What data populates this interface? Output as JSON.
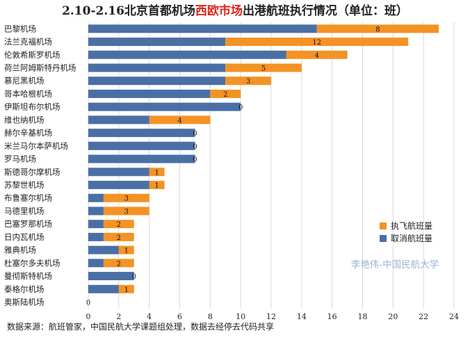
{
  "chart_data": {
    "type": "bar",
    "orientation": "horizontal",
    "stacked": true,
    "title": {
      "prefix": "2.10-2.16北京首都机场",
      "highlight": "西欧市场",
      "suffix": "出港航班执行情况（单位：班）",
      "highlight_color": "#e0241b"
    },
    "categories": [
      "巴黎机场",
      "法兰克福机场",
      "伦敦希斯罗机场",
      "荷兰阿姆斯特丹机场",
      "慕尼黑机场",
      "哥本哈根机场",
      "伊斯坦布尔机场",
      "维也纳机场",
      "赫尔辛基机场",
      "米兰马尔本萨机场",
      "罗马机场",
      "斯德哥尔摩机场",
      "苏黎世机场",
      "布鲁塞尔机场",
      "马德里机场",
      "巴塞罗那机场",
      "日内瓦机场",
      "雅典机场",
      "杜塞尔多夫机场",
      "曼彻斯特机场",
      "泰格尔机场",
      "奥斯陆机场"
    ],
    "series": [
      {
        "name": "取消航班量",
        "color": "#4a6fa5",
        "values": [
          15,
          9,
          13,
          9,
          9,
          8,
          10,
          4,
          7,
          7,
          7,
          4,
          4,
          1,
          1,
          1,
          1,
          2,
          1,
          3,
          2,
          0
        ]
      },
      {
        "name": "执飞航班量",
        "color": "#f39325",
        "values": [
          8,
          12,
          4,
          5,
          3,
          2,
          0,
          4,
          0,
          0,
          0,
          1,
          1,
          3,
          3,
          2,
          2,
          1,
          2,
          0,
          1,
          0
        ]
      }
    ],
    "data_labels_series": "执飞航班量",
    "xlim": [
      0,
      24
    ],
    "x_ticks": [
      0,
      2,
      4,
      6,
      8,
      10,
      12,
      14,
      16,
      18,
      20,
      22,
      24
    ],
    "grid": true,
    "legend_position": "bottom-right",
    "legend_order": [
      "执飞航班量",
      "取消航班量"
    ]
  },
  "watermark": "李艳伟-中国民航大学",
  "source": "数据来源：航班管家，中国民航大学课题组处理，数据去经停去代码共享"
}
